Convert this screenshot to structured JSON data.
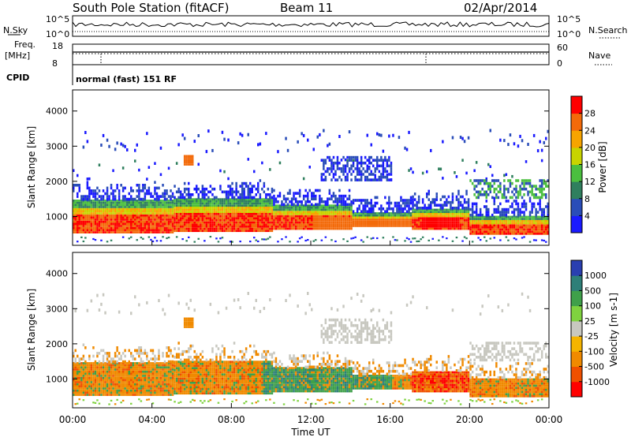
{
  "header": {
    "station": "South Pole Station (fitACF)",
    "beam": "Beam 11",
    "date": "02/Apr/2014"
  },
  "noise_panel": {
    "left_label": "N.Sky",
    "right_label": "N.Search",
    "left_ticks": [
      "10^5",
      "10^0"
    ],
    "right_ticks": [
      "10^5",
      "10^0"
    ]
  },
  "freq_panel": {
    "left_label_1": "Freq.",
    "left_label_2": "[MHz]",
    "right_label": "Nave",
    "left_ticks": [
      "18",
      "8"
    ],
    "right_ticks": [
      "60",
      "0"
    ]
  },
  "cpid": {
    "label": "CPID",
    "value": "normal (fast) 151 RF"
  },
  "colors": {
    "power_scale": [
      "#1a1aff",
      "#2a4db8",
      "#2f7f5e",
      "#4bbf3f",
      "#c8d400",
      "#f7a400",
      "#f36a0a",
      "#ff0000"
    ],
    "velocity_scale": [
      "#2a3fb0",
      "#2e7f78",
      "#3fa04a",
      "#7fd23f",
      "#c8c8c0",
      "#f5b400",
      "#f08a00",
      "#f05000",
      "#ff0000"
    ]
  },
  "chart_data": [
    {
      "type": "heatmap",
      "title": "",
      "quantity": "Power",
      "ylabel": "Slant Range [km]",
      "xlabel": "Time UT",
      "xlim": [
        "00:00",
        "24:00"
      ],
      "ylim": [
        180,
        4600
      ],
      "y_ticks": [
        1000,
        2000,
        3000,
        4000
      ],
      "x_tick_labels": [
        "00:00",
        "04:00",
        "08:00",
        "12:00",
        "16:00",
        "20:00",
        "00:00"
      ],
      "colorbar": {
        "label": "Power [dB]",
        "ticks": [
          "4",
          "8",
          "12",
          "16",
          "20",
          "24",
          "28"
        ]
      }
    },
    {
      "type": "heatmap",
      "title": "",
      "quantity": "Velocity",
      "ylabel": "Slant Range [km]",
      "xlabel": "Time UT",
      "xlim": [
        "00:00",
        "24:00"
      ],
      "ylim": [
        180,
        4600
      ],
      "y_ticks": [
        1000,
        2000,
        3000,
        4000
      ],
      "x_tick_labels": [
        "00:00",
        "04:00",
        "08:00",
        "12:00",
        "16:00",
        "20:00",
        "00:00"
      ],
      "colorbar": {
        "label": "Velocity [m s-1]",
        "ticks": [
          "1000",
          "500",
          "100",
          "25",
          "-25",
          "-100",
          "-500",
          "-1000"
        ]
      }
    }
  ]
}
